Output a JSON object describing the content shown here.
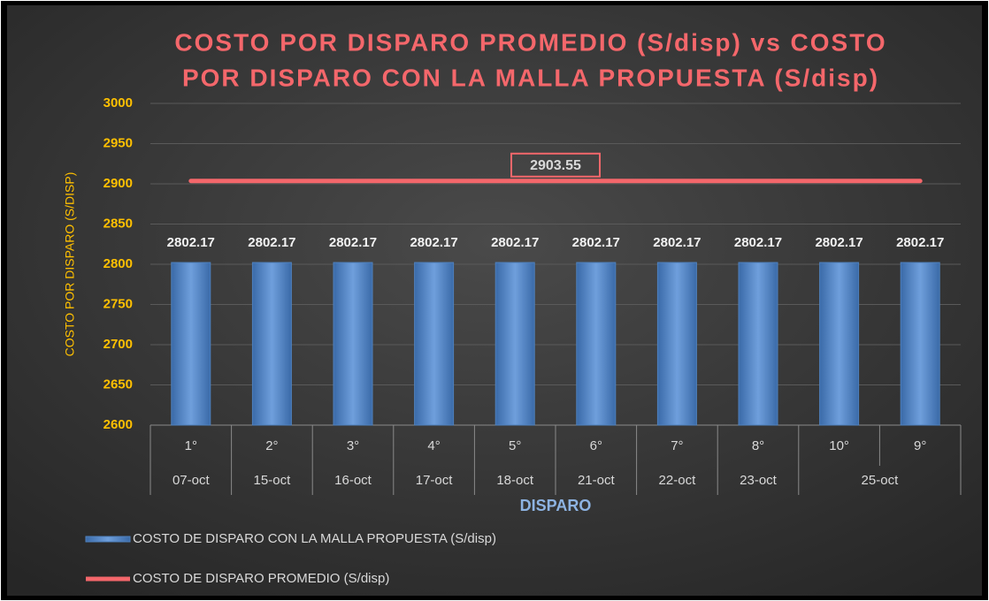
{
  "chart_data": {
    "type": "combo",
    "title": [
      "COSTO POR DISPARO PROMEDIO (S/disp) vs COSTO",
      "POR DISPARO CON LA MALLA PROPUESTA (S/disp)"
    ],
    "x_label": "DISPARO",
    "y_label": "COSTO POR DISPARO (S/DISP)",
    "categories": [
      "1°",
      "2°",
      "3°",
      "4°",
      "5°",
      "6°",
      "7°",
      "8°",
      "10°",
      "9°"
    ],
    "category_groups": [
      {
        "label": "07-oct",
        "size": 1
      },
      {
        "label": "15-oct",
        "size": 1
      },
      {
        "label": "16-oct",
        "size": 1
      },
      {
        "label": "17-oct",
        "size": 1
      },
      {
        "label": "18-oct",
        "size": 1
      },
      {
        "label": "21-oct",
        "size": 1
      },
      {
        "label": "22-oct",
        "size": 1
      },
      {
        "label": "23-oct",
        "size": 1
      },
      {
        "label": "25-oct",
        "size": 2
      }
    ],
    "series": [
      {
        "name": "COSTO DE DISPARO CON LA MALLA PROPUESTA (S/disp)",
        "type": "bar",
        "color": "#4f81bd",
        "values": [
          2802.17,
          2802.17,
          2802.17,
          2802.17,
          2802.17,
          2802.17,
          2802.17,
          2802.17,
          2802.17,
          2802.17
        ]
      },
      {
        "name": "COSTO DE DISPARO PROMEDIO (S/disp)",
        "type": "line",
        "color": "#f4676b",
        "values": [
          2903.55,
          2903.55,
          2903.55,
          2903.55,
          2903.55,
          2903.55,
          2903.55,
          2903.55,
          2903.55,
          2903.55
        ]
      }
    ],
    "ylim": [
      2600,
      3000
    ],
    "yticks": [
      2600,
      2650,
      2700,
      2750,
      2800,
      2850,
      2900,
      2950,
      3000
    ],
    "grid": true,
    "legend": "bottom"
  }
}
